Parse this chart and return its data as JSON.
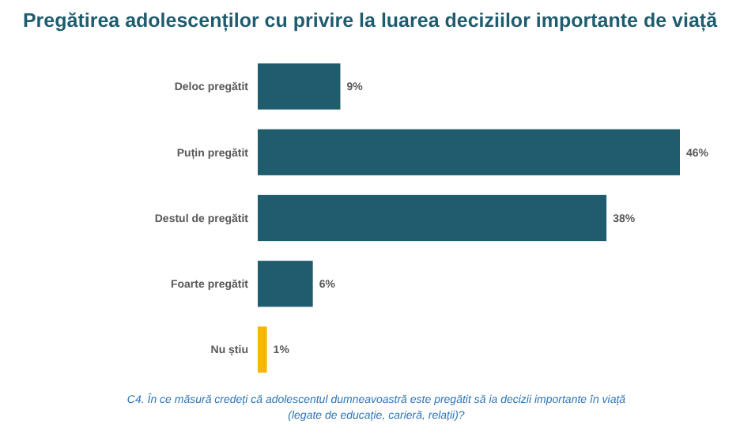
{
  "chart_data": {
    "type": "bar",
    "orientation": "horizontal",
    "title": "Pregătirea adolescenților cu privire la luarea deciziilor importante de viață",
    "categories": [
      "Deloc pregătit",
      "Puțin pregătit",
      "Destul de pregătit",
      "Foarte pregătit",
      "Nu știu"
    ],
    "values": [
      9,
      46,
      38,
      6,
      1
    ],
    "colors": [
      "#1f5c6e",
      "#1f5c6e",
      "#1f5c6e",
      "#1f5c6e",
      "#f5b700"
    ],
    "value_labels": [
      "9%",
      "46%",
      "38%",
      "6%",
      "1%"
    ],
    "annotations": [
      "C4. În ce măsură credeți că adolescentul dumneavoastră este pregătit să ia decizii importante în viață (legate de educație, carieră, relații)?"
    ]
  }
}
